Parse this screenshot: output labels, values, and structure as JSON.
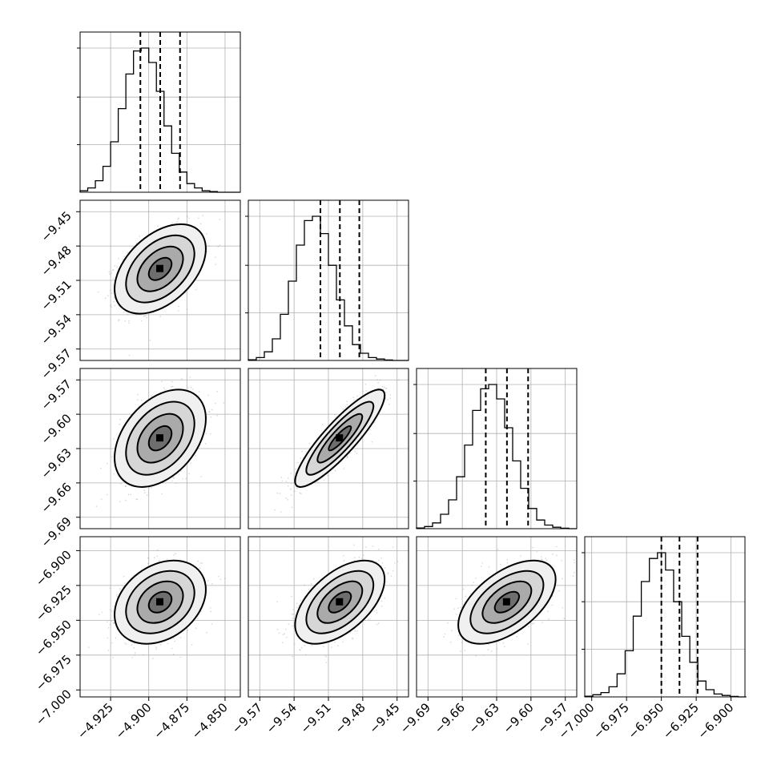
{
  "chart_data": {
    "type": "corner",
    "title": "",
    "grid": true,
    "params": [
      {
        "axis_ticks": [
          "-4.925",
          "-4.900",
          "-4.875",
          "-4.850"
        ],
        "range": [
          -4.945,
          -4.84
        ],
        "mean": -4.8925,
        "sigma": 0.013,
        "quantiles": [
          -4.9055,
          -4.8925,
          -4.8795
        ]
      },
      {
        "axis_ticks": [
          "-9.57",
          "-9.54",
          "-9.51",
          "-9.48",
          "-9.45"
        ],
        "range": [
          -9.58,
          -9.44
        ],
        "mean": -9.5,
        "sigma": 0.017,
        "quantiles": [
          -9.517,
          -9.5,
          -9.483
        ]
      },
      {
        "axis_ticks": [
          "-9.69",
          "-9.66",
          "-9.63",
          "-9.60",
          "-9.57"
        ],
        "range": [
          -9.7,
          -9.56
        ],
        "mean": -9.621,
        "sigma": 0.0185,
        "quantiles": [
          -9.6395,
          -9.621,
          -9.6025
        ]
      },
      {
        "axis_ticks": [
          "-7.000",
          "-6.975",
          "-6.950",
          "-6.925",
          "-6.900"
        ],
        "range": [
          -7.005,
          -6.89
        ],
        "mean": -6.937,
        "sigma": 0.013,
        "quantiles": [
          -6.95,
          -6.937,
          -6.924
        ]
      }
    ],
    "histograms": [
      {
        "param": 0,
        "bin_edges_start": -4.945,
        "bin_width": 0.005,
        "values": [
          1,
          3,
          8,
          18,
          35,
          58,
          82,
          98,
          100,
          90,
          70,
          46,
          27,
          14,
          6,
          3,
          1,
          0.5,
          0,
          0,
          0
        ]
      },
      {
        "param": 1,
        "bin_edges_start": -9.58,
        "bin_width": 0.007,
        "values": [
          0.5,
          2,
          6,
          15,
          32,
          55,
          80,
          97,
          100,
          88,
          66,
          42,
          24,
          11,
          5,
          2,
          1,
          0.3,
          0,
          0
        ]
      },
      {
        "param": 2,
        "bin_edges_start": -9.7,
        "bin_width": 0.007,
        "values": [
          0.5,
          1.5,
          4,
          10,
          20,
          36,
          58,
          82,
          97,
          100,
          90,
          70,
          47,
          28,
          14,
          6,
          2.5,
          1,
          0.3,
          0
        ]
      },
      {
        "param": 3,
        "bin_edges_start": -7.005,
        "bin_width": 0.0058,
        "values": [
          0.5,
          1.5,
          3,
          7,
          16,
          32,
          56,
          80,
          96,
          100,
          88,
          66,
          42,
          24,
          11,
          5,
          2,
          1,
          0.3,
          0
        ]
      }
    ],
    "pairs": [
      {
        "x": 0,
        "y": 1,
        "correlation": 0.45
      },
      {
        "x": 0,
        "y": 2,
        "correlation": 0.4
      },
      {
        "x": 1,
        "y": 2,
        "correlation": 0.88
      },
      {
        "x": 0,
        "y": 3,
        "correlation": 0.3
      },
      {
        "x": 1,
        "y": 3,
        "correlation": 0.55
      },
      {
        "x": 2,
        "y": 3,
        "correlation": 0.55
      }
    ],
    "contour_levels_sigma": [
      0.5,
      1.0,
      1.5,
      2.0
    ]
  }
}
